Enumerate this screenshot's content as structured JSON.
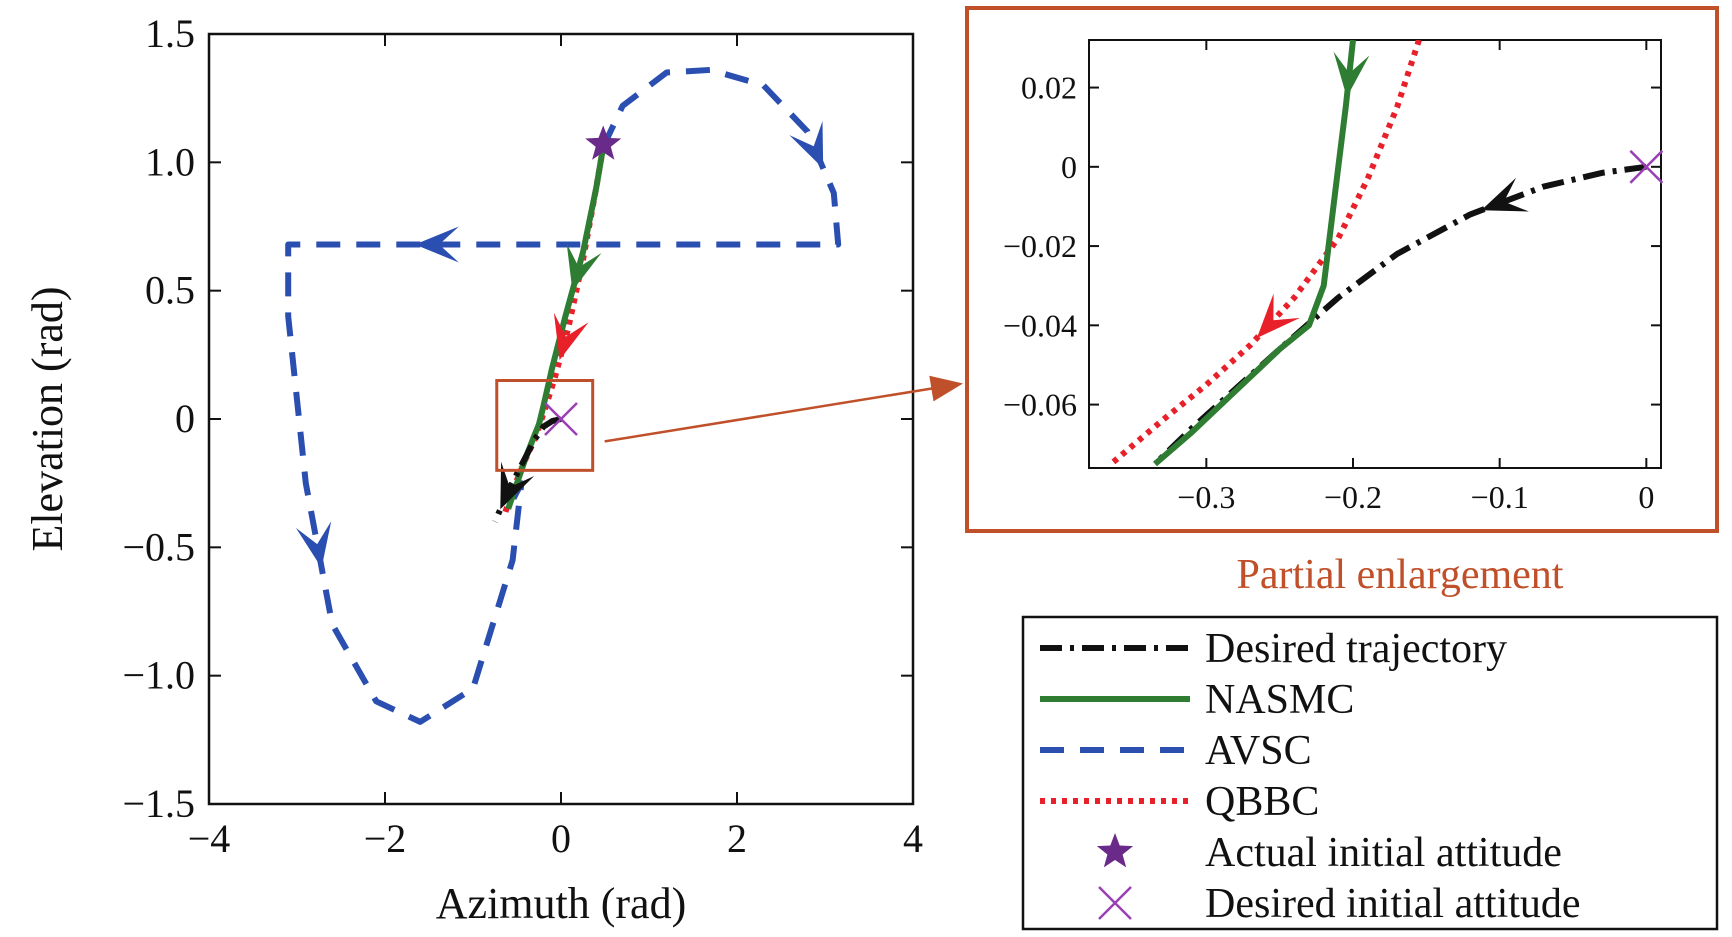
{
  "colors": {
    "desired": "#111111",
    "nasmc": "#2e7d32",
    "avsc": "#2a4fb0",
    "qbbc": "#e8202a",
    "star": "#6a2a8a",
    "cross": "#9a3fb5",
    "accent_box": "#c0502a"
  },
  "chart_data": [
    {
      "type": "line",
      "xlabel": "Azimuth (rad)",
      "ylabel": "Elevation (rad)",
      "xlim": [
        -4,
        4
      ],
      "ylim": [
        -1.5,
        1.5
      ],
      "xticks": [
        -4,
        -2,
        0,
        2,
        4
      ],
      "xtick_labels": [
        "−4",
        "−2",
        "0",
        "2",
        "4"
      ],
      "yticks": [
        1.5,
        1.0,
        0.5,
        0,
        -0.5,
        -1.0,
        -1.5
      ],
      "ytick_labels": [
        "1.5",
        "1.0",
        "0.5",
        "0",
        "−0.5",
        "−1.0",
        "−1.5"
      ],
      "series": [
        {
          "name": "Desired trajectory",
          "style": "dashdot",
          "x": [
            0,
            -0.1,
            -0.2,
            -0.3,
            -0.45,
            -0.6,
            -0.75
          ],
          "y": [
            0,
            -0.008,
            -0.03,
            -0.08,
            -0.18,
            -0.28,
            -0.4
          ]
        },
        {
          "name": "NASMC",
          "style": "solid",
          "x": [
            0.48,
            0.4,
            0.25,
            0.05,
            -0.1,
            -0.2,
            -0.25,
            -0.32,
            -0.4,
            -0.5,
            -0.6
          ],
          "y": [
            1.06,
            0.9,
            0.65,
            0.4,
            0.2,
            0.05,
            -0.02,
            -0.08,
            -0.15,
            -0.25,
            -0.35
          ]
        },
        {
          "name": "AVSC",
          "style": "dashed",
          "x": [
            0.48,
            0.7,
            1.2,
            1.7,
            2.3,
            2.8,
            3.1,
            3.15,
            0.5,
            -3.1,
            -3.1,
            -2.9,
            -2.6,
            -2.1,
            -1.6,
            -1.0,
            -0.55,
            -0.45,
            -0.6
          ],
          "y": [
            1.06,
            1.22,
            1.35,
            1.36,
            1.3,
            1.12,
            0.88,
            0.68,
            0.68,
            0.68,
            0.4,
            -0.25,
            -0.8,
            -1.1,
            -1.18,
            -1.05,
            -0.55,
            -0.25,
            -0.35
          ]
        },
        {
          "name": "QBBC",
          "style": "dotted",
          "x": [
            0.48,
            0.4,
            0.25,
            0.08,
            -0.08,
            -0.2,
            -0.3,
            -0.42,
            -0.55,
            -0.65
          ],
          "y": [
            1.06,
            0.9,
            0.62,
            0.35,
            0.15,
            0.02,
            -0.08,
            -0.17,
            -0.28,
            -0.38
          ]
        },
        {
          "name": "Actual initial attitude",
          "marker": "star",
          "x": [
            0.48
          ],
          "y": [
            1.07
          ]
        },
        {
          "name": "Desired initial attitude",
          "marker": "x",
          "x": [
            0
          ],
          "y": [
            0
          ]
        }
      ]
    },
    {
      "type": "line",
      "title": "Partial enlargement",
      "xlim": [
        -0.38,
        0.01
      ],
      "ylim": [
        -0.076,
        0.032
      ],
      "xticks": [
        -0.3,
        -0.2,
        -0.1,
        0
      ],
      "xtick_labels": [
        "−0.3",
        "−0.2",
        "−0.1",
        "0"
      ],
      "yticks": [
        0.02,
        0,
        -0.02,
        -0.04,
        -0.06
      ],
      "ytick_labels": [
        "0.02",
        "0",
        "−0.02",
        "−0.04",
        "−0.06"
      ],
      "series": [
        {
          "name": "Desired trajectory",
          "style": "dashdot",
          "x": [
            0,
            -0.03,
            -0.07,
            -0.12,
            -0.17,
            -0.21,
            -0.25,
            -0.28,
            -0.31,
            -0.335
          ],
          "y": [
            0,
            -0.0015,
            -0.005,
            -0.012,
            -0.022,
            -0.033,
            -0.046,
            -0.056,
            -0.066,
            -0.075
          ]
        },
        {
          "name": "NASMC",
          "style": "solid",
          "x": [
            -0.2,
            -0.205,
            -0.21,
            -0.215,
            -0.22,
            -0.23,
            -0.25,
            -0.27,
            -0.29,
            -0.31,
            -0.335
          ],
          "y": [
            0.032,
            0.015,
            0.0,
            -0.015,
            -0.03,
            -0.04,
            -0.046,
            -0.053,
            -0.06,
            -0.067,
            -0.075
          ]
        },
        {
          "name": "QBBC",
          "style": "dotted",
          "x": [
            -0.155,
            -0.17,
            -0.19,
            -0.21,
            -0.24,
            -0.27,
            -0.3,
            -0.33,
            -0.365
          ],
          "y": [
            0.032,
            0.015,
            -0.003,
            -0.018,
            -0.033,
            -0.045,
            -0.055,
            -0.064,
            -0.075
          ]
        },
        {
          "name": "Desired initial attitude",
          "marker": "x",
          "x": [
            0
          ],
          "y": [
            0
          ]
        }
      ]
    }
  ],
  "legend": {
    "items": [
      {
        "label": "Desired trajectory",
        "key": "desired"
      },
      {
        "label": "NASMC",
        "key": "nasmc"
      },
      {
        "label": "AVSC",
        "key": "avsc"
      },
      {
        "label": "QBBC",
        "key": "qbbc"
      },
      {
        "label": "Actual initial attitude",
        "key": "star"
      },
      {
        "label": "Desired initial attitude",
        "key": "cross"
      }
    ]
  }
}
